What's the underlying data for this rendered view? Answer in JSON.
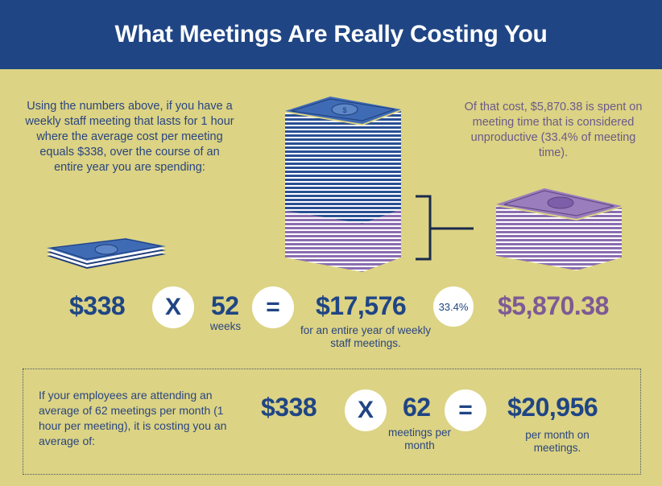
{
  "header": {
    "title": "What Meetings Are Really Costing You"
  },
  "intro_text": "Using the numbers above, if you have a weekly staff meeting that lasts for 1 hour where the average cost per meeting equals $338, over the course of an entire year you are spending:",
  "unproductive_text": "Of that cost, $5,870.38 is spent on meeting time that is considered unproductive (33.4% of meeting time).",
  "equation_yearly": {
    "cost": "$338",
    "times": "X",
    "multiplier": "52",
    "multiplier_label": "weeks",
    "equals": "=",
    "result": "$17,576",
    "result_label": "for an entire year of weekly staff meetings.",
    "percent": "33.4%",
    "unproductive_amount": "$5,870.38"
  },
  "monthly_text": "If your employees are attending an average of 62 meetings per month (1 hour per meeting), it is costing you an average of:",
  "equation_monthly": {
    "cost": "$338",
    "times": "X",
    "multiplier": "62",
    "multiplier_label": "meetings per month",
    "equals": "=",
    "result": "$20,956",
    "result_label": "per month on meetings."
  },
  "colors": {
    "background": "#dcd384",
    "header": "#1f4584",
    "blue_text": "#1f4584",
    "purple_text": "#7d5a95",
    "money_blue": "#3f6bb5",
    "money_purple": "#9a7dbd"
  },
  "icons": [
    "money-stack-icon",
    "tall-money-stack-icon",
    "purple-money-stack-icon",
    "bracket-connector-icon"
  ]
}
